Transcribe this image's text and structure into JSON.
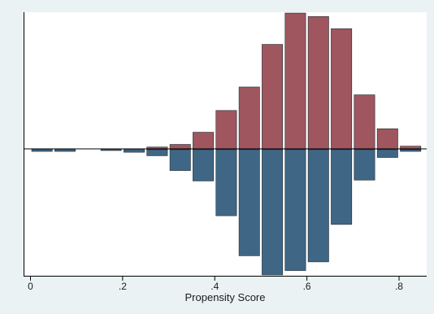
{
  "chart_data": {
    "type": "bar",
    "title": "",
    "xlabel": "Propensity Score",
    "ylabel": "",
    "xlim": [
      -0.015,
      0.86
    ],
    "ylim": [
      -0.145,
      0.158
    ],
    "x_ticks": [
      0,
      0.2,
      0.4,
      0.6,
      0.8
    ],
    "x_tick_labels": [
      "0",
      ".2",
      ".4",
      ".6",
      ".8"
    ],
    "bin_width": 0.05,
    "bin_centers": [
      0.025,
      0.075,
      0.125,
      0.175,
      0.225,
      0.275,
      0.325,
      0.375,
      0.425,
      0.475,
      0.525,
      0.575,
      0.625,
      0.675,
      0.725,
      0.775,
      0.825
    ],
    "grid": false,
    "legend": "none",
    "series": [
      {
        "values": [
          0,
          0,
          0,
          0,
          0,
          0.003,
          0.006,
          0.02,
          0.045,
          0.072,
          0.121,
          0.157,
          0.153,
          0.139,
          0.063,
          0.024,
          0.004
        ],
        "color": "#a0565e"
      },
      {
        "values": [
          -0.002,
          -0.002,
          0,
          -0.001,
          -0.003,
          -0.007,
          -0.024,
          -0.036,
          -0.076,
          -0.122,
          -0.144,
          -0.139,
          -0.129,
          -0.086,
          -0.035,
          -0.009,
          -0.002
        ],
        "color": "#3f6785"
      }
    ]
  }
}
